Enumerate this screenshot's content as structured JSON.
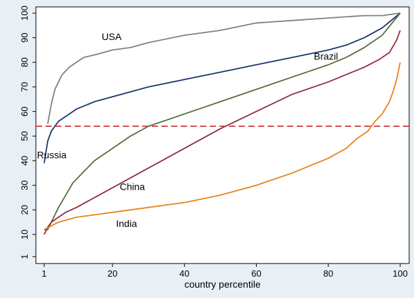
{
  "chart_data": {
    "type": "line",
    "title": "",
    "xlabel": "country percentile",
    "ylabel": "",
    "xlim": [
      1,
      100
    ],
    "ylim": [
      1,
      100
    ],
    "x_ticks": [
      1,
      20,
      40,
      60,
      80,
      100
    ],
    "y_ticks": [
      1,
      10,
      20,
      30,
      40,
      50,
      60,
      70,
      80,
      90,
      100
    ],
    "grid": false,
    "legend": "none",
    "reference_line": {
      "y": 54,
      "color": "#d0343f",
      "style": "dashed"
    },
    "series": [
      {
        "name": "USA",
        "color": "#76867a",
        "label_at": [
          17,
          89
        ],
        "points": [
          [
            2,
            55
          ],
          [
            3,
            63
          ],
          [
            4,
            69
          ],
          [
            5,
            72
          ],
          [
            6,
            75
          ],
          [
            8,
            78
          ],
          [
            10,
            80
          ],
          [
            12,
            82
          ],
          [
            15,
            83
          ],
          [
            20,
            85
          ],
          [
            25,
            86
          ],
          [
            30,
            88
          ],
          [
            40,
            91
          ],
          [
            50,
            93
          ],
          [
            60,
            96
          ],
          [
            70,
            97
          ],
          [
            80,
            98
          ],
          [
            90,
            99
          ],
          [
            95,
            99
          ],
          [
            100,
            100
          ]
        ]
      },
      {
        "name": "Russia",
        "color": "#1b3569",
        "label_at": [
          -1,
          41
        ],
        "points": [
          [
            1,
            39
          ],
          [
            2,
            48
          ],
          [
            3,
            52
          ],
          [
            4,
            54
          ],
          [
            5,
            56
          ],
          [
            6,
            57
          ],
          [
            8,
            59
          ],
          [
            10,
            61
          ],
          [
            15,
            64
          ],
          [
            20,
            66
          ],
          [
            25,
            68
          ],
          [
            30,
            70
          ],
          [
            40,
            73
          ],
          [
            50,
            76
          ],
          [
            60,
            79
          ],
          [
            70,
            82
          ],
          [
            80,
            85
          ],
          [
            85,
            87
          ],
          [
            90,
            90
          ],
          [
            95,
            94
          ],
          [
            100,
            100
          ]
        ]
      },
      {
        "name": "Brazil",
        "color": "#566e3e",
        "label_at": [
          76,
          81
        ],
        "points": [
          [
            1,
            12
          ],
          [
            2,
            12
          ],
          [
            3,
            15
          ],
          [
            4,
            18
          ],
          [
            5,
            21
          ],
          [
            7,
            26
          ],
          [
            9,
            31
          ],
          [
            11,
            34
          ],
          [
            13,
            37
          ],
          [
            15,
            40
          ],
          [
            20,
            45
          ],
          [
            25,
            50
          ],
          [
            30,
            54
          ],
          [
            40,
            59
          ],
          [
            50,
            64
          ],
          [
            60,
            69
          ],
          [
            70,
            74
          ],
          [
            80,
            79
          ],
          [
            85,
            82
          ],
          [
            90,
            86
          ],
          [
            95,
            91
          ],
          [
            100,
            100
          ]
        ]
      },
      {
        "name": "China",
        "color": "#8f2d3b",
        "label_at": [
          22,
          28
        ],
        "points": [
          [
            1,
            10
          ],
          [
            2,
            13
          ],
          [
            3,
            15
          ],
          [
            5,
            17
          ],
          [
            7,
            19
          ],
          [
            10,
            21
          ],
          [
            15,
            25
          ],
          [
            20,
            29
          ],
          [
            25,
            33
          ],
          [
            30,
            37
          ],
          [
            40,
            45
          ],
          [
            50,
            53
          ],
          [
            60,
            60
          ],
          [
            70,
            67
          ],
          [
            80,
            72
          ],
          [
            85,
            75
          ],
          [
            90,
            78
          ],
          [
            94,
            81
          ],
          [
            97,
            84
          ],
          [
            99,
            89
          ],
          [
            100,
            93
          ]
        ]
      },
      {
        "name": "India",
        "color": "#e7831c",
        "label_at": [
          21,
          13
        ],
        "points": [
          [
            1,
            12
          ],
          [
            5,
            15
          ],
          [
            10,
            17
          ],
          [
            15,
            18
          ],
          [
            20,
            19
          ],
          [
            30,
            21
          ],
          [
            40,
            23
          ],
          [
            50,
            26
          ],
          [
            60,
            30
          ],
          [
            70,
            35
          ],
          [
            80,
            41
          ],
          [
            85,
            45
          ],
          [
            88,
            49
          ],
          [
            91,
            52
          ],
          [
            93,
            56
          ],
          [
            95,
            59
          ],
          [
            97,
            64
          ],
          [
            98,
            68
          ],
          [
            99,
            73
          ],
          [
            100,
            80
          ]
        ]
      }
    ]
  }
}
